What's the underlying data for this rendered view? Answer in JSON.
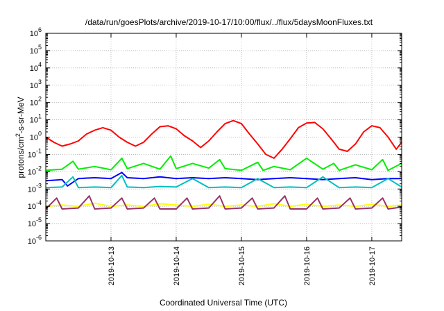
{
  "chart_data": {
    "type": "line",
    "title": "/data/run/goesPlots/archive/2019-10-17/10:00/flux/../flux/5daysMoonFluxes.txt",
    "xlabel": "Coordinated Universal Time (UTC)",
    "ylabel": "protons/cm²-s-sr-MeV",
    "ylabel_parts": {
      "prefix": "protons/cm",
      "sup": "2",
      "suffix": "-s-sr-MeV"
    },
    "yscale": "log",
    "ylim": [
      1e-06,
      1000000.0
    ],
    "grid": true,
    "y_ticks": [
      {
        "base": "10",
        "exp": "-6",
        "value": 1e-06
      },
      {
        "base": "10",
        "exp": "-5",
        "value": 1e-05
      },
      {
        "base": "10",
        "exp": "-4",
        "value": 0.0001
      },
      {
        "base": "10",
        "exp": "-3",
        "value": 0.001
      },
      {
        "base": "10",
        "exp": "-2",
        "value": 0.01
      },
      {
        "base": "10",
        "exp": "-1",
        "value": 0.1
      },
      {
        "base": "10",
        "exp": "0",
        "value": 1
      },
      {
        "base": "10",
        "exp": "1",
        "value": 10
      },
      {
        "base": "10",
        "exp": "2",
        "value": 100
      },
      {
        "base": "10",
        "exp": "3",
        "value": 1000
      },
      {
        "base": "10",
        "exp": "4",
        "value": 10000
      },
      {
        "base": "10",
        "exp": "5",
        "value": 100000
      },
      {
        "base": "10",
        "exp": "6",
        "value": 1000000
      }
    ],
    "xlim": [
      "2019-10-12T00:00",
      "2019-10-17T11:00"
    ],
    "x_ticks": [
      {
        "label": "2019-10-13",
        "value": "2019-10-13T00:00"
      },
      {
        "label": "2019-10-14",
        "value": "2019-10-14T00:00"
      },
      {
        "label": "2019-10-15",
        "value": "2019-10-15T00:00"
      },
      {
        "label": "2019-10-16",
        "value": "2019-10-16T00:00"
      },
      {
        "label": "2019-10-17",
        "value": "2019-10-17T00:00"
      }
    ],
    "series": [
      {
        "color": "#ff0000",
        "x": [
          "2019-10-12T00:00",
          "2019-10-12T03:00",
          "2019-10-12T06:00",
          "2019-10-12T09:00",
          "2019-10-12T12:00",
          "2019-10-12T15:00",
          "2019-10-12T18:00",
          "2019-10-12T21:00",
          "2019-10-13T00:00",
          "2019-10-13T03:00",
          "2019-10-13T06:00",
          "2019-10-13T09:00",
          "2019-10-13T12:00",
          "2019-10-13T15:00",
          "2019-10-13T18:00",
          "2019-10-13T21:00",
          "2019-10-14T00:00",
          "2019-10-14T03:00",
          "2019-10-14T06:00",
          "2019-10-14T09:00",
          "2019-10-14T12:00",
          "2019-10-14T15:00",
          "2019-10-14T18:00",
          "2019-10-14T21:00",
          "2019-10-15T00:00",
          "2019-10-15T03:00",
          "2019-10-15T06:00",
          "2019-10-15T09:00",
          "2019-10-15T12:00",
          "2019-10-15T15:00",
          "2019-10-15T18:00",
          "2019-10-15T21:00",
          "2019-10-16T00:00",
          "2019-10-16T03:00",
          "2019-10-16T06:00",
          "2019-10-16T09:00",
          "2019-10-16T12:00",
          "2019-10-16T15:00",
          "2019-10-16T18:00",
          "2019-10-16T21:00",
          "2019-10-17T00:00",
          "2019-10-17T03:00",
          "2019-10-17T06:00",
          "2019-10-17T09:00",
          "2019-10-17T11:00"
        ],
        "values": [
          1.0,
          0.5,
          0.3,
          0.4,
          0.6,
          1.5,
          2.5,
          3.5,
          2.5,
          1.0,
          0.5,
          0.3,
          0.5,
          1.5,
          4.0,
          4.5,
          3.0,
          1.2,
          0.6,
          0.25,
          0.6,
          2.0,
          6.0,
          9.0,
          6.0,
          1.5,
          0.4,
          0.1,
          0.06,
          0.2,
          0.8,
          3.5,
          6.5,
          7.0,
          3.0,
          0.8,
          0.2,
          0.15,
          0.4,
          2.0,
          4.5,
          3.5,
          1.0,
          0.2,
          0.5
        ]
      },
      {
        "color": "#00ee00",
        "x": [
          "2019-10-12T00:00",
          "2019-10-12T06:00",
          "2019-10-12T10:00",
          "2019-10-12T12:00",
          "2019-10-12T18:00",
          "2019-10-13T00:00",
          "2019-10-13T04:00",
          "2019-10-13T06:00",
          "2019-10-13T12:00",
          "2019-10-13T18:00",
          "2019-10-13T22:00",
          "2019-10-14T00:00",
          "2019-10-14T06:00",
          "2019-10-14T12:00",
          "2019-10-14T16:00",
          "2019-10-14T18:00",
          "2019-10-15T00:00",
          "2019-10-15T06:00",
          "2019-10-15T08:00",
          "2019-10-15T12:00",
          "2019-10-15T18:00",
          "2019-10-16T00:00",
          "2019-10-16T06:00",
          "2019-10-16T10:00",
          "2019-10-16T12:00",
          "2019-10-16T18:00",
          "2019-10-17T00:00",
          "2019-10-17T04:00",
          "2019-10-17T06:00",
          "2019-10-17T11:00"
        ],
        "values": [
          0.012,
          0.014,
          0.04,
          0.014,
          0.02,
          0.013,
          0.06,
          0.015,
          0.03,
          0.014,
          0.08,
          0.015,
          0.03,
          0.016,
          0.05,
          0.015,
          0.012,
          0.035,
          0.012,
          0.02,
          0.013,
          0.06,
          0.014,
          0.03,
          0.012,
          0.025,
          0.013,
          0.05,
          0.012,
          0.03
        ]
      },
      {
        "color": "#0000ff",
        "x": [
          "2019-10-12T00:00",
          "2019-10-12T06:00",
          "2019-10-12T08:00",
          "2019-10-12T12:00",
          "2019-10-12T18:00",
          "2019-10-13T00:00",
          "2019-10-13T04:00",
          "2019-10-13T06:00",
          "2019-10-13T12:00",
          "2019-10-13T18:00",
          "2019-10-14T00:00",
          "2019-10-14T06:00",
          "2019-10-14T12:00",
          "2019-10-14T18:00",
          "2019-10-15T00:00",
          "2019-10-15T06:00",
          "2019-10-15T12:00",
          "2019-10-15T18:00",
          "2019-10-16T00:00",
          "2019-10-16T06:00",
          "2019-10-16T12:00",
          "2019-10-16T18:00",
          "2019-10-17T00:00",
          "2019-10-17T06:00",
          "2019-10-17T11:00"
        ],
        "values": [
          0.003,
          0.0035,
          0.0015,
          0.004,
          0.0045,
          0.004,
          0.009,
          0.0045,
          0.004,
          0.005,
          0.004,
          0.0045,
          0.004,
          0.0045,
          0.004,
          0.0035,
          0.004,
          0.0045,
          0.004,
          0.0035,
          0.004,
          0.0045,
          0.0035,
          0.004,
          0.004
        ]
      },
      {
        "color": "#00bfbf",
        "x": [
          "2019-10-12T00:00",
          "2019-10-12T06:00",
          "2019-10-12T10:00",
          "2019-10-12T12:00",
          "2019-10-12T18:00",
          "2019-10-13T00:00",
          "2019-10-13T04:00",
          "2019-10-13T06:00",
          "2019-10-13T12:00",
          "2019-10-13T18:00",
          "2019-10-14T00:00",
          "2019-10-14T06:00",
          "2019-10-14T12:00",
          "2019-10-14T18:00",
          "2019-10-15T00:00",
          "2019-10-15T06:00",
          "2019-10-15T12:00",
          "2019-10-15T18:00",
          "2019-10-16T00:00",
          "2019-10-16T06:00",
          "2019-10-16T12:00",
          "2019-10-16T18:00",
          "2019-10-17T00:00",
          "2019-10-17T06:00",
          "2019-10-17T11:00"
        ],
        "values": [
          0.0012,
          0.0013,
          0.005,
          0.0012,
          0.0013,
          0.0012,
          0.006,
          0.0013,
          0.0012,
          0.0014,
          0.0013,
          0.004,
          0.0012,
          0.0013,
          0.0012,
          0.004,
          0.0012,
          0.0013,
          0.0012,
          0.005,
          0.0012,
          0.0013,
          0.0012,
          0.004,
          0.0013
        ]
      },
      {
        "color": "#ffff00",
        "x": [
          "2019-10-12T00:00",
          "2019-10-12T06:00",
          "2019-10-12T12:00",
          "2019-10-12T18:00",
          "2019-10-13T00:00",
          "2019-10-13T06:00",
          "2019-10-13T12:00",
          "2019-10-13T18:00",
          "2019-10-14T00:00",
          "2019-10-14T06:00",
          "2019-10-14T12:00",
          "2019-10-14T18:00",
          "2019-10-15T00:00",
          "2019-10-15T06:00",
          "2019-10-15T12:00",
          "2019-10-15T18:00",
          "2019-10-16T00:00",
          "2019-10-16T06:00",
          "2019-10-16T12:00",
          "2019-10-16T18:00",
          "2019-10-17T00:00",
          "2019-10-17T06:00",
          "2019-10-17T11:00"
        ],
        "values": [
          0.0001,
          0.00012,
          0.0001,
          0.00015,
          0.0001,
          0.00012,
          0.0001,
          0.00014,
          0.00012,
          0.0001,
          0.00013,
          0.0001,
          0.00012,
          0.0001,
          0.00014,
          0.0001,
          0.00013,
          0.0001,
          0.00012,
          0.0001,
          0.00013,
          0.0001,
          0.00012
        ]
      },
      {
        "color": "#993366",
        "x": [
          "2019-10-12T00:00",
          "2019-10-12T04:00",
          "2019-10-12T06:00",
          "2019-10-12T12:00",
          "2019-10-12T16:00",
          "2019-10-12T18:00",
          "2019-10-13T00:00",
          "2019-10-13T04:00",
          "2019-10-13T06:00",
          "2019-10-13T12:00",
          "2019-10-13T16:00",
          "2019-10-13T18:00",
          "2019-10-14T00:00",
          "2019-10-14T04:00",
          "2019-10-14T06:00",
          "2019-10-14T12:00",
          "2019-10-14T16:00",
          "2019-10-14T18:00",
          "2019-10-15T00:00",
          "2019-10-15T04:00",
          "2019-10-15T06:00",
          "2019-10-15T12:00",
          "2019-10-15T16:00",
          "2019-10-15T18:00",
          "2019-10-16T00:00",
          "2019-10-16T04:00",
          "2019-10-16T06:00",
          "2019-10-16T12:00",
          "2019-10-16T16:00",
          "2019-10-16T18:00",
          "2019-10-17T00:00",
          "2019-10-17T04:00",
          "2019-10-17T06:00",
          "2019-10-17T11:00"
        ],
        "values": [
          7e-05,
          0.0003,
          7e-05,
          8e-05,
          0.0004,
          7e-05,
          8e-05,
          0.0003,
          7e-05,
          8e-05,
          0.0003,
          7e-05,
          7e-05,
          0.0003,
          7e-05,
          8e-05,
          0.0004,
          7e-05,
          8e-05,
          0.0003,
          7e-05,
          8e-05,
          0.0004,
          7e-05,
          7e-05,
          0.0003,
          7e-05,
          8e-05,
          0.0003,
          7e-05,
          8e-05,
          0.0003,
          7e-05,
          9e-05
        ]
      }
    ]
  }
}
